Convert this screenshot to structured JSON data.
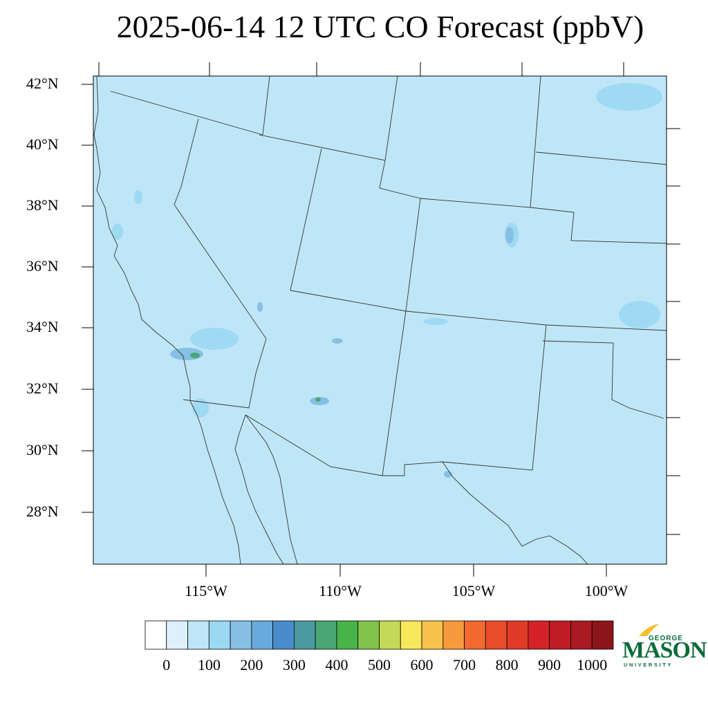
{
  "title": "2025-06-14 12 UTC CO Forecast (ppbV)",
  "map": {
    "background_color": "#bfe6f7",
    "lat_labels": [
      "42°N",
      "40°N",
      "38°N",
      "36°N",
      "34°N",
      "32°N",
      "30°N",
      "28°N"
    ],
    "lon_labels": [
      "115°W",
      "110°W",
      "105°W",
      "100°W"
    ]
  },
  "colorbar": {
    "labels": [
      "0",
      "100",
      "200",
      "300",
      "400",
      "500",
      "600",
      "700",
      "800",
      "900",
      "1000"
    ],
    "colors": [
      "#ffffff",
      "#dcf1fb",
      "#bfe6f7",
      "#9bd8f2",
      "#86c0e4",
      "#6aa9dc",
      "#4a8ccb",
      "#4a9ba0",
      "#4aa775",
      "#47b449",
      "#83c24b",
      "#c4d957",
      "#f8e75b",
      "#f8c24d",
      "#f79a3e",
      "#f4692f",
      "#ea4d2b",
      "#e03b29",
      "#d42228",
      "#bf1d26",
      "#a91a22",
      "#8c1519"
    ]
  },
  "logo": {
    "line1": "GEORGE",
    "line2": "MASON",
    "line3": "UNIVERSITY",
    "color": "#0b6b3a",
    "flame_color": "#f2c12e"
  }
}
